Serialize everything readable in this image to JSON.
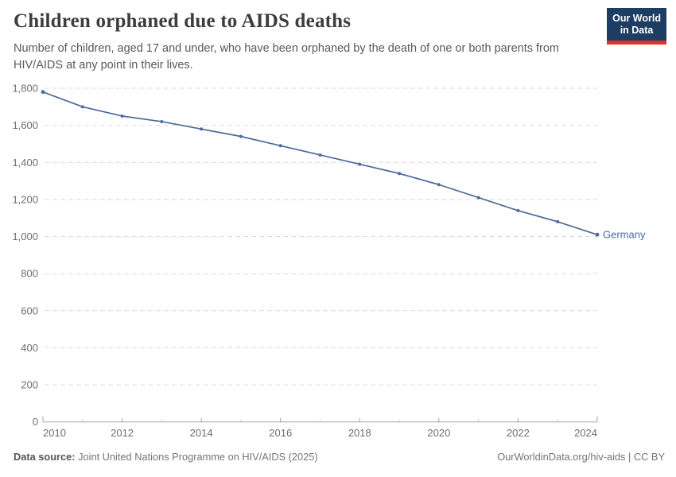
{
  "header": {
    "title": "Children orphaned due to AIDS deaths",
    "subtitle": "Number of children, aged 17 and under, who have been orphaned by the death of one or both parents from HIV/AIDS at any point in their lives.",
    "logo": {
      "line1": "Our World",
      "line2": "in Data",
      "bg_color": "#1d3d63",
      "accent_color": "#d7322b"
    }
  },
  "chart_data": {
    "type": "line",
    "title": "Children orphaned due to AIDS deaths",
    "x": [
      2010,
      2011,
      2012,
      2013,
      2014,
      2015,
      2016,
      2017,
      2018,
      2019,
      2020,
      2021,
      2022,
      2023,
      2024
    ],
    "series": [
      {
        "name": "Germany",
        "color": "#4c6a9c",
        "values": [
          1780,
          1700,
          1650,
          1620,
          1580,
          1540,
          1490,
          1440,
          1390,
          1340,
          1280,
          1210,
          1140,
          1080,
          1010
        ]
      }
    ],
    "xlabel": "",
    "ylabel": "",
    "ylim": [
      0,
      1800
    ],
    "ytick_interval": 200,
    "ytick_labels": [
      "0",
      "200",
      "400",
      "600",
      "800",
      "1,000",
      "1,200",
      "1,400",
      "1,600",
      "1,800"
    ],
    "xtick_labels": [
      "2010",
      "2012",
      "2014",
      "2016",
      "2018",
      "2020",
      "2022",
      "2024"
    ],
    "grid": "horizontal-dashed",
    "legend_position": "end-of-line",
    "grid_color": "#dcdcdc",
    "axis_color": "#a6a6a6",
    "minor_tick_color": "#c6c6c6",
    "tick_label_color": "#6e6e6e"
  },
  "footer": {
    "datasource_label": "Data source:",
    "datasource_value": "Joint United Nations Programme on HIV/AIDS (2025)",
    "link": "OurWorldinData.org/hiv-aids | CC BY"
  }
}
